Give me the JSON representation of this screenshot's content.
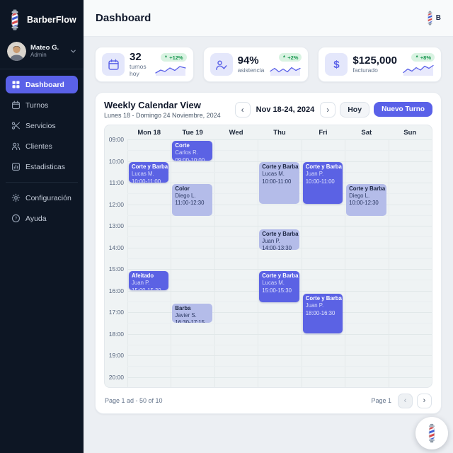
{
  "app": {
    "name": "BarberFlow"
  },
  "glyphs": {
    "chevron_left": "‹",
    "chevron_right": "›",
    "up_triangle": "▲",
    "question": "?"
  },
  "colors": {
    "accent": "#5a61e8",
    "sidebar_bg": "#0d1624",
    "event_dark": "#5b62e4",
    "event_light": "#b4bce9",
    "badge_green_bg": "#d9f3e2",
    "badge_green_text": "#1a9850"
  },
  "sidebar": {
    "logo_label": "BarberFlow",
    "user": {
      "name": "Mateo G.",
      "role": "Admin"
    },
    "items": [
      {
        "label": "Dashboard",
        "active": true
      },
      {
        "label": "Turnos",
        "active": false
      },
      {
        "label": "Servicios",
        "active": false
      },
      {
        "label": "Clientes",
        "active": false
      },
      {
        "label": "Estadisticas",
        "active": false
      }
    ],
    "footer_items": [
      {
        "label": "Configuración"
      },
      {
        "label": "Ayuda"
      }
    ]
  },
  "topbar": {
    "title": "Dashboard",
    "logo_letter": "B"
  },
  "stats": [
    {
      "value": "32",
      "label": "turnos hoy",
      "delta": "+12%",
      "spark": "2,14 9,10 15,12 22,7 29,10.5 36,5 44,7"
    },
    {
      "value": "94%",
      "label": "asistencia",
      "delta": "+2%",
      "spark": "2,11.5 8,7.5 14,12.5 20,8.5 26,12.5 32,6.5 38,10.5 44,7.5"
    },
    {
      "value": "$125,000",
      "label": "facturado",
      "delta": "+8%",
      "icon_glyph": "$",
      "spark": "2,13.5 8,8.5 14,11.5 20,6.5 26,10 32,4.5 38,7.5 44,3.5"
    }
  ],
  "calendar": {
    "title": "Weekly Calendar View",
    "subtitle": "Lunes 18 - Domingo 24 Noviembre, 2024",
    "range_label": "Nov 18-24, 2024",
    "today_label": "Hoy",
    "new_button_label": "Nuevo Turno",
    "days": [
      "Mon 18",
      "Tue 19",
      "Wed",
      "Thu",
      "Fri",
      "Sat",
      "Sun"
    ],
    "hours": [
      "09:00",
      "10:00",
      "11:00",
      "12:00",
      "13:00",
      "14:00",
      "15:00",
      "16:00",
      "17:00",
      "18:00",
      "19:00",
      "20:00"
    ],
    "events": [
      {
        "day": 1,
        "start": 9.07,
        "end": 10.0,
        "variant": "dark",
        "title": "Corte",
        "person": "Carlos R.",
        "time": "09:00-10:00"
      },
      {
        "day": 0,
        "start": 10.05,
        "end": 11.0,
        "variant": "dark",
        "title": "Corte y Barba",
        "person": "Lucas M.",
        "time": "10:00-11:00"
      },
      {
        "day": 3,
        "start": 10.05,
        "end": 12.0,
        "variant": "light",
        "title": "Corte y Barba",
        "person": "Lucas M.",
        "time": "10:00-11:00"
      },
      {
        "day": 4,
        "start": 10.05,
        "end": 12.0,
        "variant": "dark",
        "title": "Corte y Barba",
        "person": "Juan P.",
        "time": "10:00-11:00"
      },
      {
        "day": 1,
        "start": 11.05,
        "end": 12.55,
        "variant": "light",
        "title": "Color",
        "person": "Diego L.",
        "time": "11:00-12:30"
      },
      {
        "day": 5,
        "start": 11.05,
        "end": 12.55,
        "variant": "light",
        "title": "Corte y Barba",
        "person": "Diego L.",
        "time": "10:00-12:30"
      },
      {
        "day": 3,
        "start": 13.15,
        "end": 14.1,
        "variant": "light",
        "title": "Corte y Barba",
        "person": "Juan P.",
        "time": "14:00-13:30"
      },
      {
        "day": 0,
        "start": 15.1,
        "end": 16.0,
        "variant": "dark",
        "title": "Afeitado",
        "person": "Juan P.",
        "time": "15:00-15:30"
      },
      {
        "day": 3,
        "start": 15.1,
        "end": 16.55,
        "variant": "dark",
        "title": "Corte y Barba",
        "person": "Lucas M.",
        "time": "15:00-15:30"
      },
      {
        "day": 4,
        "start": 16.15,
        "end": 18.0,
        "variant": "dark",
        "title": "Corte y Barba",
        "person": "Juan P.",
        "time": "18:00-16:30"
      },
      {
        "day": 1,
        "start": 16.6,
        "end": 17.5,
        "variant": "light",
        "title": "Barba",
        "person": "Javier S.",
        "time": "16:30-17:15"
      }
    ],
    "footer": {
      "left_text": "Page 1 ad - 50 of 10",
      "page_label": "Page 1"
    }
  }
}
